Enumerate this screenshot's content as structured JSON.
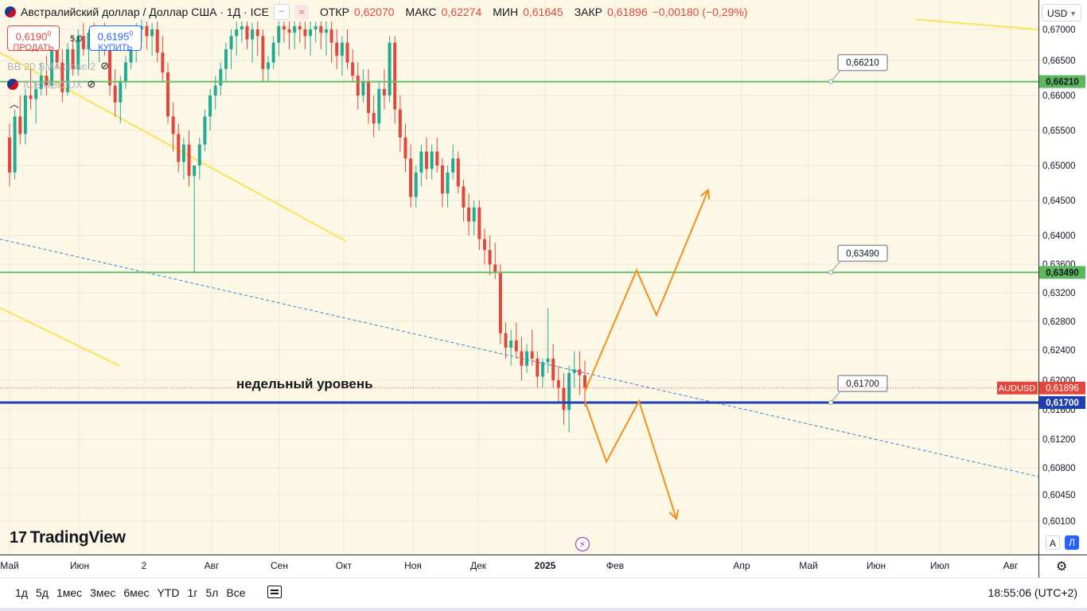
{
  "header": {
    "title": "Австралийский доллар / Доллар США · 1Д · ICE",
    "open_label": "ОТКР",
    "open_value": "0,62070",
    "high_label": "МАКС",
    "high_value": "0,62274",
    "low_label": "МИН",
    "low_value": "0,61645",
    "close_label": "ЗАКР",
    "close_value": "0,61896",
    "change": "−0,00180 (−0,29%)"
  },
  "trade": {
    "sell_price": "0,6190",
    "sell_sup": "0",
    "sell_label": "ПРОДАТЬ",
    "buy_price": "0,6195",
    "buy_sup": "0",
    "buy_label": "КУПИТЬ",
    "spread": "5,0"
  },
  "indicators": {
    "bb_label": "BB 20 SMA close 2",
    "symbol_label": "ICE:USDIDX"
  },
  "currency": "USD",
  "modes": {
    "auto": "A",
    "log": "Л"
  },
  "annotation": {
    "weekly_level": "недельный уровень"
  },
  "logo": "TradingView",
  "timeframes": [
    "1д",
    "5д",
    "1мес",
    "3мес",
    "6мес",
    "YTD",
    "1г",
    "5л",
    "Все"
  ],
  "clock": "18:55:06 (UTC+2)",
  "colors": {
    "background": "#fdf8e6",
    "up": "#22ab94",
    "down": "#e2473e",
    "level_green": "#66bb6a",
    "level_blue": "#1e3fae",
    "trend_yellow": "#fbe25c",
    "orange": "#f0901e",
    "dash_blue": "#2e86de"
  },
  "chart_data": {
    "type": "candlestick",
    "symbol": "AUDUSD",
    "last_price": 0.61896,
    "last_price_label": "0,61896",
    "y_axis": {
      "ticks": [
        0.67,
        0.6665,
        0.666,
        0.6655,
        0.665,
        0.6645,
        0.664,
        0.636,
        0.632,
        0.628,
        0.624,
        0.62,
        0.616,
        0.612,
        0.608,
        0.6045,
        0.601
      ],
      "tick_labels": [
        "0,67000",
        "0,66500",
        "0,66000",
        "0,65500",
        "0,65000",
        "0,64500",
        "0,64000",
        "0,63600",
        "0,63200",
        "0,62800",
        "0,62400",
        "0,62000",
        "0,61600",
        "0,61200",
        "0,60800",
        "0,60450",
        "0,60100"
      ]
    },
    "x_axis": {
      "labels": [
        "Май",
        "Июн",
        "2",
        "Авг",
        "Сен",
        "Окт",
        "Ноя",
        "Дек",
        "2025",
        "Фев",
        "Апр",
        "Май",
        "Июн",
        "Июл",
        "Авг"
      ]
    },
    "levels": [
      {
        "value": 0.6621,
        "label": "0,66210",
        "color": "#66bb6a"
      },
      {
        "value": 0.6349,
        "label": "0,63490",
        "color": "#66bb6a"
      },
      {
        "value": 0.617,
        "label": "0,61700",
        "color": "#1e3fae"
      }
    ],
    "ohlc": [
      [
        0.654,
        0.656,
        0.647,
        0.649
      ],
      [
        0.649,
        0.658,
        0.648,
        0.657
      ],
      [
        0.657,
        0.66,
        0.653,
        0.6545
      ],
      [
        0.6545,
        0.661,
        0.653,
        0.66
      ],
      [
        0.66,
        0.664,
        0.658,
        0.6595
      ],
      [
        0.6595,
        0.662,
        0.656,
        0.661
      ],
      [
        0.661,
        0.665,
        0.66,
        0.663
      ],
      [
        0.663,
        0.666,
        0.66,
        0.6615
      ],
      [
        0.6615,
        0.669,
        0.661,
        0.668
      ],
      [
        0.668,
        0.67,
        0.664,
        0.665
      ],
      [
        0.665,
        0.667,
        0.659,
        0.6605
      ],
      [
        0.6605,
        0.668,
        0.66,
        0.667
      ],
      [
        0.667,
        0.669,
        0.663,
        0.664
      ],
      [
        0.664,
        0.67,
        0.663,
        0.669
      ],
      [
        0.669,
        0.671,
        0.666,
        0.667
      ],
      [
        0.667,
        0.67,
        0.664,
        0.6695
      ],
      [
        0.6695,
        0.671,
        0.667,
        0.668
      ],
      [
        0.668,
        0.6705,
        0.665,
        0.67
      ],
      [
        0.67,
        0.671,
        0.666,
        0.6675
      ],
      [
        0.6675,
        0.67,
        0.66,
        0.6615
      ],
      [
        0.6615,
        0.664,
        0.657,
        0.659
      ],
      [
        0.659,
        0.663,
        0.656,
        0.662
      ],
      [
        0.662,
        0.666,
        0.661,
        0.665
      ],
      [
        0.665,
        0.669,
        0.664,
        0.668
      ],
      [
        0.668,
        0.671,
        0.665,
        0.67
      ],
      [
        0.67,
        0.6715,
        0.668,
        0.6705
      ],
      [
        0.6705,
        0.6712,
        0.667,
        0.669
      ],
      [
        0.669,
        0.671,
        0.666,
        0.67
      ],
      [
        0.67,
        0.6712,
        0.665,
        0.6665
      ],
      [
        0.6665,
        0.669,
        0.662,
        0.6635
      ],
      [
        0.6635,
        0.665,
        0.656,
        0.657
      ],
      [
        0.657,
        0.659,
        0.652,
        0.6545
      ],
      [
        0.6545,
        0.656,
        0.649,
        0.6505
      ],
      [
        0.6505,
        0.654,
        0.648,
        0.653
      ],
      [
        0.653,
        0.655,
        0.647,
        0.6485
      ],
      [
        0.6485,
        0.65,
        0.635,
        0.65
      ],
      [
        0.65,
        0.654,
        0.648,
        0.653
      ],
      [
        0.653,
        0.658,
        0.652,
        0.657
      ],
      [
        0.657,
        0.661,
        0.655,
        0.66
      ],
      [
        0.66,
        0.663,
        0.658,
        0.6615
      ],
      [
        0.6615,
        0.665,
        0.66,
        0.664
      ],
      [
        0.664,
        0.668,
        0.662,
        0.667
      ],
      [
        0.667,
        0.67,
        0.664,
        0.669
      ],
      [
        0.669,
        0.6712,
        0.666,
        0.67
      ],
      [
        0.67,
        0.6712,
        0.668,
        0.6705
      ],
      [
        0.6705,
        0.6712,
        0.667,
        0.6685
      ],
      [
        0.6685,
        0.671,
        0.665,
        0.67
      ],
      [
        0.67,
        0.6712,
        0.666,
        0.669
      ],
      [
        0.669,
        0.67,
        0.662,
        0.664
      ],
      [
        0.664,
        0.666,
        0.662,
        0.665
      ],
      [
        0.665,
        0.669,
        0.664,
        0.668
      ],
      [
        0.668,
        0.6712,
        0.666,
        0.6705
      ],
      [
        0.6705,
        0.6712,
        0.668,
        0.67
      ],
      [
        0.67,
        0.6712,
        0.667,
        0.6695
      ],
      [
        0.6695,
        0.6712,
        0.667,
        0.6705
      ],
      [
        0.6705,
        0.6712,
        0.668,
        0.67
      ],
      [
        0.67,
        0.6712,
        0.667,
        0.669
      ],
      [
        0.669,
        0.6712,
        0.666,
        0.67
      ],
      [
        0.67,
        0.6712,
        0.668,
        0.6705
      ],
      [
        0.6705,
        0.6712,
        0.667,
        0.6695
      ],
      [
        0.6695,
        0.6712,
        0.666,
        0.67
      ],
      [
        0.67,
        0.6712,
        0.665,
        0.668
      ],
      [
        0.668,
        0.67,
        0.664,
        0.666
      ],
      [
        0.666,
        0.669,
        0.663,
        0.668
      ],
      [
        0.668,
        0.67,
        0.664,
        0.665
      ],
      [
        0.665,
        0.667,
        0.662,
        0.663
      ],
      [
        0.663,
        0.665,
        0.658,
        0.66
      ],
      [
        0.66,
        0.664,
        0.659,
        0.662
      ],
      [
        0.662,
        0.664,
        0.656,
        0.6575
      ],
      [
        0.6575,
        0.66,
        0.654,
        0.656
      ],
      [
        0.656,
        0.662,
        0.655,
        0.661
      ],
      [
        0.661,
        0.664,
        0.658,
        0.66
      ],
      [
        0.66,
        0.669,
        0.659,
        0.668
      ],
      [
        0.668,
        0.669,
        0.656,
        0.658
      ],
      [
        0.658,
        0.66,
        0.652,
        0.654
      ],
      [
        0.654,
        0.656,
        0.649,
        0.651
      ],
      [
        0.651,
        0.653,
        0.644,
        0.6455
      ],
      [
        0.6455,
        0.65,
        0.644,
        0.649
      ],
      [
        0.649,
        0.653,
        0.647,
        0.652
      ],
      [
        0.652,
        0.654,
        0.648,
        0.6495
      ],
      [
        0.6495,
        0.653,
        0.648,
        0.652
      ],
      [
        0.652,
        0.654,
        0.649,
        0.65
      ],
      [
        0.65,
        0.651,
        0.644,
        0.646
      ],
      [
        0.646,
        0.65,
        0.644,
        0.649
      ],
      [
        0.649,
        0.653,
        0.648,
        0.651
      ],
      [
        0.651,
        0.652,
        0.646,
        0.647
      ],
      [
        0.647,
        0.648,
        0.642,
        0.644
      ],
      [
        0.644,
        0.646,
        0.64,
        0.642
      ],
      [
        0.642,
        0.645,
        0.64,
        0.644
      ],
      [
        0.644,
        0.645,
        0.638,
        0.6395
      ],
      [
        0.6395,
        0.641,
        0.636,
        0.638
      ],
      [
        0.638,
        0.64,
        0.6345,
        0.636
      ],
      [
        0.636,
        0.639,
        0.634,
        0.635
      ],
      [
        0.635,
        0.636,
        0.625,
        0.6265
      ],
      [
        0.6265,
        0.628,
        0.623,
        0.6245
      ],
      [
        0.6245,
        0.627,
        0.622,
        0.6255
      ],
      [
        0.6255,
        0.628,
        0.623,
        0.624
      ],
      [
        0.624,
        0.626,
        0.62,
        0.622
      ],
      [
        0.622,
        0.625,
        0.621,
        0.624
      ],
      [
        0.624,
        0.627,
        0.622,
        0.623
      ],
      [
        0.623,
        0.624,
        0.619,
        0.6205
      ],
      [
        0.6205,
        0.623,
        0.619,
        0.6225
      ],
      [
        0.6225,
        0.63,
        0.621,
        0.623
      ],
      [
        0.623,
        0.625,
        0.619,
        0.62
      ],
      [
        0.62,
        0.622,
        0.617,
        0.619
      ],
      [
        0.619,
        0.621,
        0.614,
        0.616
      ],
      [
        0.616,
        0.622,
        0.613,
        0.621
      ],
      [
        0.621,
        0.624,
        0.619,
        0.6215
      ],
      [
        0.6215,
        0.624,
        0.618,
        0.6207
      ],
      [
        0.6207,
        0.6227,
        0.6165,
        0.619
      ]
    ],
    "trend_lines": [
      {
        "kind": "yellow",
        "from": [
          0,
          0.6665
        ],
        "to": [
          435,
          0.6392
        ]
      },
      {
        "kind": "yellow",
        "from": [
          0,
          0.63
        ],
        "to": [
          150,
          0.622
        ]
      },
      {
        "kind": "yellow",
        "from": [
          1150,
          0.6715
        ],
        "to": [
          1305,
          0.67
        ]
      },
      {
        "kind": "dashed-blue",
        "from": [
          0,
          0.6395
        ],
        "to": [
          1305,
          0.607
        ]
      }
    ],
    "orange_forecasts": [
      {
        "name": "bullish",
        "points": [
          [
            735,
            0.6185
          ],
          [
            800,
            0.6352
          ],
          [
            825,
            0.629
          ],
          [
            890,
            0.6465
          ]
        ]
      },
      {
        "name": "bearish",
        "points": [
          [
            735,
            0.6172
          ],
          [
            762,
            0.609
          ],
          [
            803,
            0.6172
          ],
          [
            850,
            0.6013
          ]
        ]
      }
    ]
  }
}
